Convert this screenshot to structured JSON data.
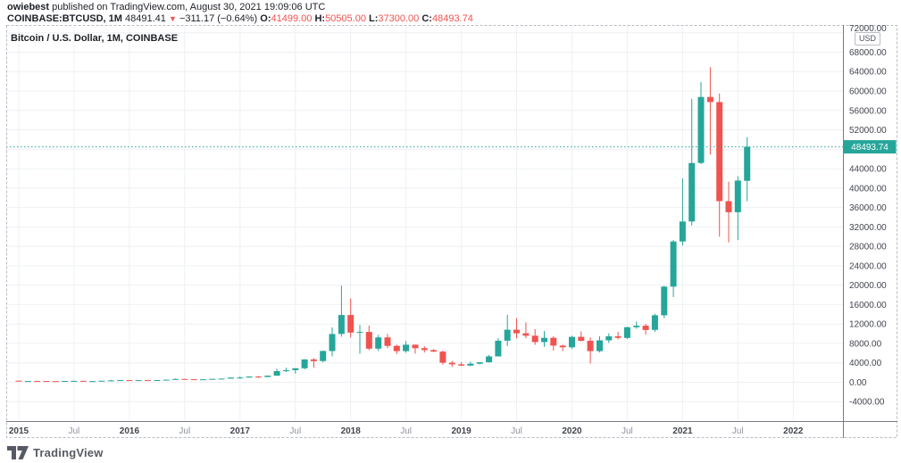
{
  "header": {
    "username": "owiebest",
    "published": "published on TradingView.com, August 30, 2021 19:09:06 UTC",
    "symbol": "COINBASE:BTCUSD, 1M",
    "price": "48491.41",
    "arrow": "▼",
    "change": "−311.17 (−0.64%)",
    "o_label": "O:",
    "o": "41499.00",
    "h_label": "H:",
    "h": "50505.00",
    "l_label": "L:",
    "l": "37300.00",
    "c_label": "C:",
    "c": "48493.74"
  },
  "chart": {
    "title": "Bitcoin / U.S. Dollar, 1M, COINBASE",
    "usd_button": "USD",
    "price_label": "48493.74"
  },
  "footer": {
    "brand": "TradingView"
  },
  "colors": {
    "up": "#26a69a",
    "down": "#ef5350",
    "grid": "#eef0f3",
    "frame": "#b7bbc4",
    "axis_line": "#787b86",
    "axis_text": "#42454e",
    "minor_text": "#8f939e",
    "price_line": "#26a69a",
    "price_label_bg": "#26a69a",
    "price_label_text": "#ffffff"
  },
  "chart_data": {
    "type": "candlestick",
    "title": "Bitcoin / U.S. Dollar, 1M, COINBASE",
    "unit": "USD",
    "interval": "1M",
    "ylim": [
      -8000,
      73600
    ],
    "ytick_labels": [
      "72000.00",
      "68000.00",
      "64000.00",
      "60000.00",
      "56000.00",
      "52000.00",
      "44000.00",
      "40000.00",
      "36000.00",
      "32000.00",
      "28000.00",
      "24000.00",
      "20000.00",
      "16000.00",
      "12000.00",
      "8000.00",
      "4000.00",
      "0.00",
      "-4000.00"
    ],
    "last_price": 48493.74,
    "last_price_label": "48493.74",
    "grid": true,
    "x_labels": [
      {
        "m": 0,
        "text": "2015",
        "type": "year"
      },
      {
        "m": 6,
        "text": "Jul",
        "type": "month"
      },
      {
        "m": 12,
        "text": "2016",
        "type": "year"
      },
      {
        "m": 18,
        "text": "Jul",
        "type": "month"
      },
      {
        "m": 24,
        "text": "2017",
        "type": "year"
      },
      {
        "m": 30,
        "text": "Jul",
        "type": "month"
      },
      {
        "m": 36,
        "text": "2018",
        "type": "year"
      },
      {
        "m": 42,
        "text": "Jul",
        "type": "month"
      },
      {
        "m": 48,
        "text": "2019",
        "type": "year"
      },
      {
        "m": 54,
        "text": "Jul",
        "type": "month"
      },
      {
        "m": 60,
        "text": "2020",
        "type": "year"
      },
      {
        "m": 66,
        "text": "Jul",
        "type": "month"
      },
      {
        "m": 72,
        "text": "2021",
        "type": "year"
      },
      {
        "m": 78,
        "text": "Jul",
        "type": "month"
      },
      {
        "m": 84,
        "text": "2022",
        "type": "year"
      }
    ],
    "columns": [
      "month",
      "open",
      "high",
      "low",
      "close"
    ],
    "candles": [
      [
        "Jan 2015",
        320,
        320,
        152,
        217
      ],
      [
        "Feb 2015",
        217,
        265,
        212,
        254
      ],
      [
        "Mar 2015",
        254,
        300,
        236,
        244
      ],
      [
        "Apr 2015",
        244,
        262,
        210,
        236
      ],
      [
        "May 2015",
        236,
        248,
        228,
        230
      ],
      [
        "Jun 2015",
        230,
        268,
        219,
        263
      ],
      [
        "Jul 2015",
        263,
        318,
        250,
        284
      ],
      [
        "Aug 2015",
        284,
        287,
        198,
        230
      ],
      [
        "Sep 2015",
        230,
        248,
        223,
        236
      ],
      [
        "Oct 2015",
        236,
        334,
        234,
        314
      ],
      [
        "Nov 2015",
        314,
        504,
        290,
        377
      ],
      [
        "Dec 2015",
        377,
        467,
        331,
        430
      ],
      [
        "Jan 2016",
        430,
        463,
        350,
        368
      ],
      [
        "Feb 2016",
        368,
        447,
        366,
        437
      ],
      [
        "Mar 2016",
        437,
        444,
        398,
        416
      ],
      [
        "Apr 2016",
        416,
        467,
        412,
        448
      ],
      [
        "May 2016",
        448,
        550,
        438,
        531
      ],
      [
        "Jun 2016",
        531,
        781,
        522,
        672
      ],
      [
        "Jul 2016",
        672,
        707,
        605,
        624
      ],
      [
        "Aug 2016",
        624,
        630,
        465,
        573
      ],
      [
        "Sep 2016",
        573,
        629,
        568,
        609
      ],
      [
        "Oct 2016",
        609,
        719,
        605,
        700
      ],
      [
        "Nov 2016",
        700,
        755,
        678,
        745
      ],
      [
        "Dec 2016",
        745,
        982,
        740,
        963
      ],
      [
        "Jan 2017",
        963,
        1191,
        752,
        970
      ],
      [
        "Feb 2017",
        970,
        1220,
        924,
        1179
      ],
      [
        "Mar 2017",
        1179,
        1290,
        891,
        1071
      ],
      [
        "Apr 2017",
        1071,
        1347,
        1062,
        1347
      ],
      [
        "May 2017",
        1347,
        2791,
        1321,
        2286
      ],
      [
        "Jun 2017",
        2286,
        2999,
        2100,
        2480
      ],
      [
        "Jul 2017",
        2480,
        2916,
        1758,
        2875
      ],
      [
        "Aug 2017",
        2875,
        4765,
        2653,
        4703
      ],
      [
        "Sep 2017",
        4703,
        4980,
        2970,
        4360
      ],
      [
        "Oct 2017",
        4360,
        6498,
        4110,
        6440
      ],
      [
        "Nov 2017",
        6440,
        11300,
        5325,
        9946
      ],
      [
        "Dec 2017",
        9946,
        19891,
        9380,
        13850
      ],
      [
        "Jan 2018",
        13850,
        17234,
        9222,
        10221
      ],
      [
        "Feb 2018",
        10221,
        11786,
        5873,
        10360
      ],
      [
        "Mar 2018",
        10360,
        11710,
        6600,
        6926
      ],
      [
        "Apr 2018",
        6926,
        9759,
        6425,
        9246
      ],
      [
        "May 2018",
        9246,
        9964,
        7032,
        7494
      ],
      [
        "Jun 2018",
        7494,
        7750,
        5780,
        6404
      ],
      [
        "Jul 2018",
        6404,
        8507,
        6070,
        7729
      ],
      [
        "Aug 2018",
        7729,
        7760,
        5880,
        7011
      ],
      [
        "Sep 2018",
        7011,
        7410,
        6111,
        6625
      ],
      [
        "Oct 2018",
        6625,
        6830,
        6205,
        6305
      ],
      [
        "Nov 2018",
        6305,
        6542,
        3651,
        4017
      ],
      [
        "Dec 2018",
        4017,
        4413,
        3122,
        3689
      ],
      [
        "Jan 2019",
        3689,
        4110,
        3350,
        3437
      ],
      [
        "Feb 2019",
        3437,
        4220,
        3330,
        3816
      ],
      [
        "Mar 2019",
        3816,
        4131,
        3666,
        4105
      ],
      [
        "Apr 2019",
        4105,
        5627,
        4054,
        5320
      ],
      [
        "May 2019",
        5320,
        9074,
        5316,
        8558
      ],
      [
        "Jun 2019",
        8558,
        13880,
        7451,
        10818
      ],
      [
        "Jul 2019",
        10818,
        13200,
        9049,
        10082
      ],
      [
        "Aug 2019",
        10082,
        12325,
        9071,
        9588
      ],
      [
        "Sep 2019",
        9588,
        10949,
        7714,
        8284
      ],
      [
        "Oct 2019",
        8284,
        10540,
        7293,
        9140
      ],
      [
        "Nov 2019",
        9140,
        9505,
        6515,
        7542
      ],
      [
        "Dec 2019",
        7542,
        7743,
        6430,
        7193
      ],
      [
        "Jan 2020",
        7193,
        9569,
        6853,
        9349
      ],
      [
        "Feb 2020",
        9349,
        10500,
        8407,
        8543
      ],
      [
        "Mar 2020",
        8543,
        9219,
        3850,
        6412
      ],
      [
        "Apr 2020",
        6412,
        9460,
        6140,
        8629
      ],
      [
        "May 2020",
        8629,
        10067,
        8101,
        9454
      ],
      [
        "Jun 2020",
        9454,
        10380,
        8817,
        9135
      ],
      [
        "Jul 2020",
        9135,
        11450,
        8900,
        11335
      ],
      [
        "Aug 2020",
        11335,
        12486,
        11010,
        11649
      ],
      [
        "Sep 2020",
        11649,
        12050,
        9825,
        10776
      ],
      [
        "Oct 2020",
        10776,
        14100,
        10374,
        13797
      ],
      [
        "Nov 2020",
        13797,
        19863,
        13195,
        19695
      ],
      [
        "Dec 2020",
        19695,
        29300,
        17572,
        28990
      ],
      [
        "Jan 2021",
        28990,
        41986,
        28130,
        33108
      ],
      [
        "Feb 2021",
        33108,
        58367,
        32296,
        45164
      ],
      [
        "Mar 2021",
        45164,
        61844,
        44950,
        58763
      ],
      [
        "Apr 2021",
        58763,
        64899,
        46930,
        57720
      ],
      [
        "May 2021",
        57720,
        59500,
        30000,
        37298
      ],
      [
        "Jun 2021",
        37298,
        41330,
        28800,
        35026
      ],
      [
        "Jul 2021",
        35026,
        42448,
        29296,
        41553
      ],
      [
        "Aug 2021",
        41499,
        50505,
        37300,
        48493.74
      ]
    ]
  }
}
